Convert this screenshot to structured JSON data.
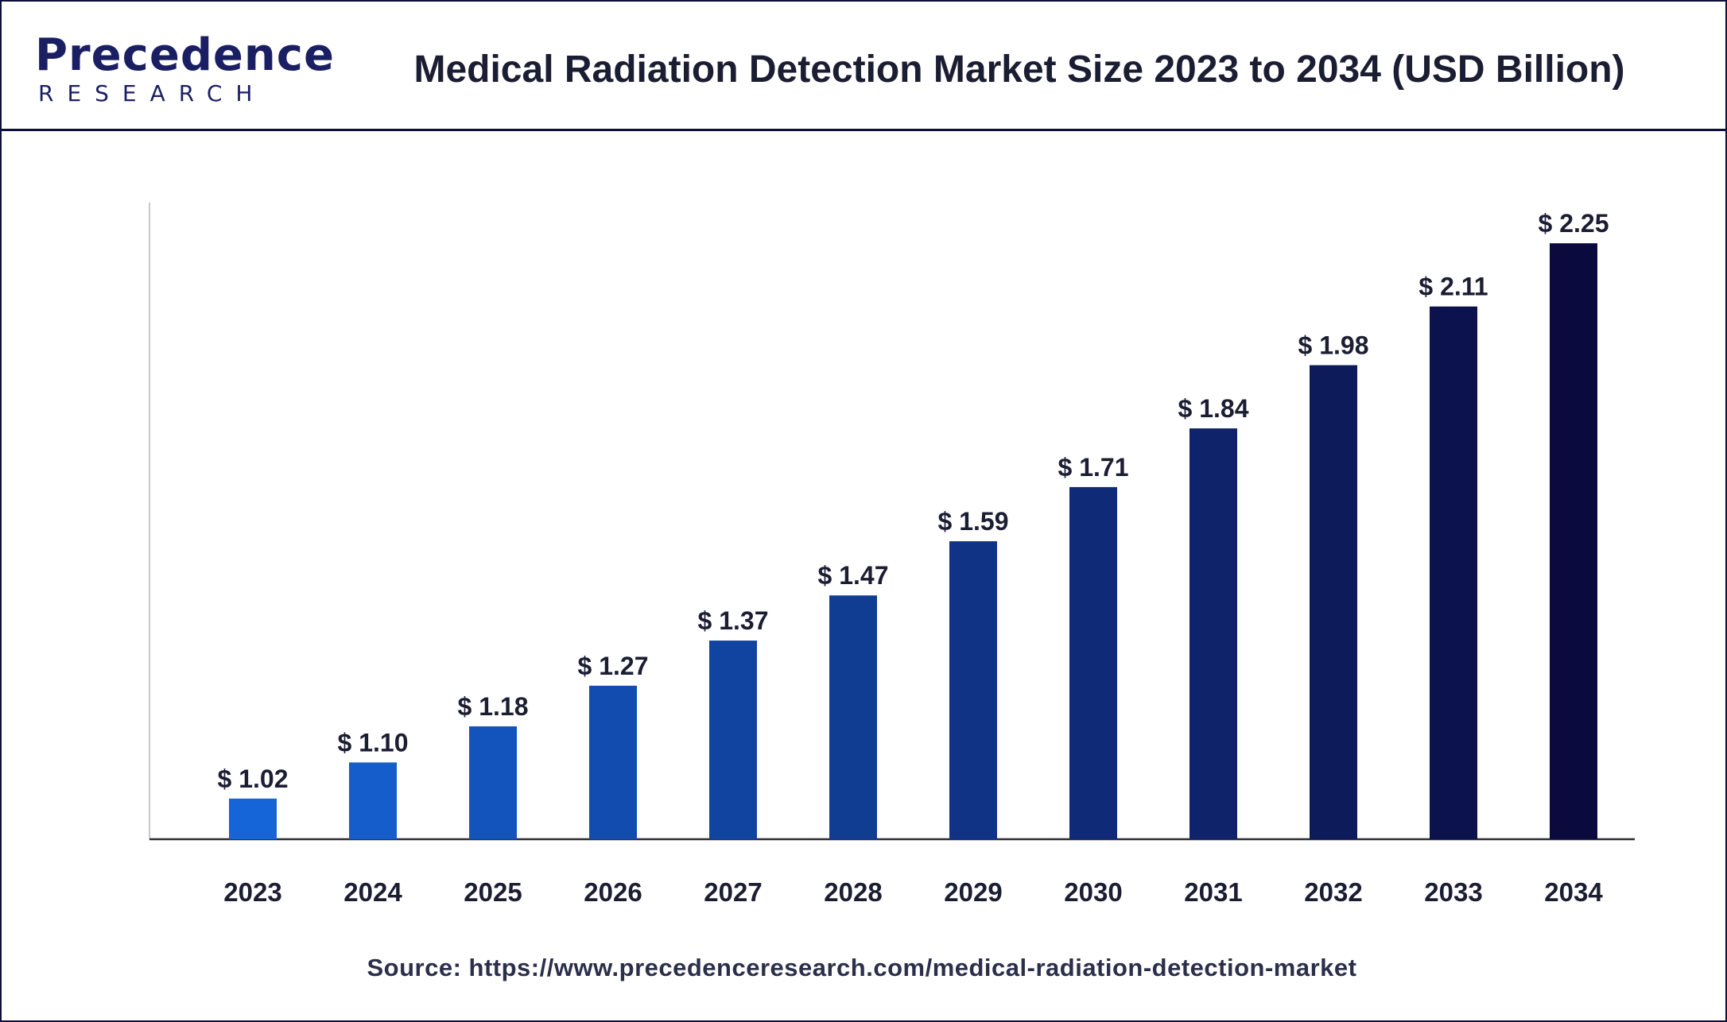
{
  "header": {
    "logo_top": "Precedence",
    "logo_bottom": "RESEARCH",
    "title": "Medical Radiation Detection Market Size 2023 to 2034 (USD Billion)"
  },
  "colors": {
    "frame": "#0e0f3a",
    "bar_start": "#1565d8",
    "bar_end": "#0b0a3f",
    "label": "#1b1d33"
  },
  "chart_data": {
    "type": "bar",
    "title": "Medical Radiation Detection Market Size 2023 to 2034 (USD Billion)",
    "categories": [
      "2023",
      "2024",
      "2025",
      "2026",
      "2027",
      "2028",
      "2029",
      "2030",
      "2031",
      "2032",
      "2033",
      "2034"
    ],
    "values": [
      1.02,
      1.1,
      1.18,
      1.27,
      1.37,
      1.47,
      1.59,
      1.71,
      1.84,
      1.98,
      2.11,
      2.25
    ],
    "value_labels": [
      "$ 1.02",
      "$ 1.10",
      "$ 1.18",
      "$ 1.27",
      "$ 1.37",
      "$ 1.47",
      "$ 1.59",
      "$ 1.71",
      "$ 1.84",
      "$ 1.98",
      "$ 2.11",
      "$ 2.25"
    ],
    "xlabel": "",
    "ylabel": "",
    "ylim": [
      0.93,
      2.34
    ],
    "grid": false,
    "legend": "none"
  },
  "footer": {
    "source": "Source: https://www.precedenceresearch.com/medical-radiation-detection-market"
  }
}
